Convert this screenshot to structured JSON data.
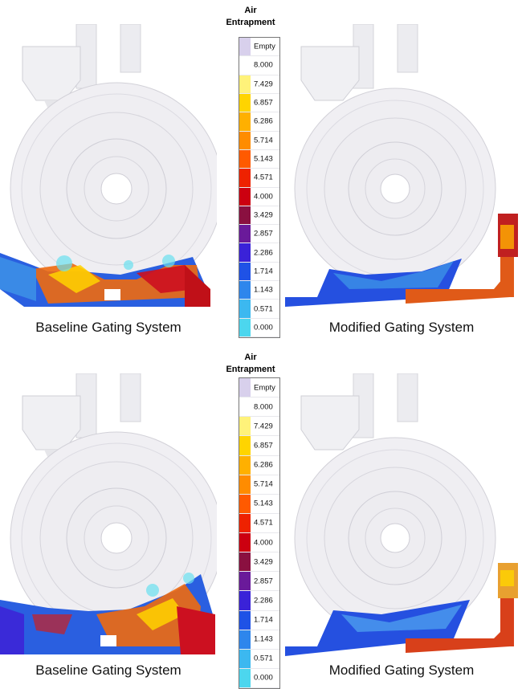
{
  "legend": {
    "title_line1": "Air",
    "title_line2": "Entrapment",
    "entries": [
      {
        "label": "Empty",
        "color": "#d8d0ec"
      },
      {
        "label": "8.000",
        "color": "#ffffff"
      },
      {
        "label": "7.429",
        "color": "#fff27a"
      },
      {
        "label": "6.857",
        "color": "#ffd400"
      },
      {
        "label": "6.286",
        "color": "#ffb000"
      },
      {
        "label": "5.714",
        "color": "#ff8c00"
      },
      {
        "label": "5.143",
        "color": "#ff5a00"
      },
      {
        "label": "4.571",
        "color": "#ee2200"
      },
      {
        "label": "4.000",
        "color": "#cc0010"
      },
      {
        "label": "3.429",
        "color": "#8a1040"
      },
      {
        "label": "2.857",
        "color": "#6a1a9a"
      },
      {
        "label": "2.286",
        "color": "#3a22d8"
      },
      {
        "label": "1.714",
        "color": "#1f52e6"
      },
      {
        "label": "1.143",
        "color": "#2e86ec"
      },
      {
        "label": "0.571",
        "color": "#3cb8f0"
      },
      {
        "label": "0.000",
        "color": "#4cd6ee"
      }
    ]
  },
  "panels": {
    "top_left_caption": "Baseline Gating System",
    "top_right_caption": "Modified Gating System",
    "bottom_left_caption": "Baseline Gating System",
    "bottom_right_caption": "Modified Gating System"
  }
}
